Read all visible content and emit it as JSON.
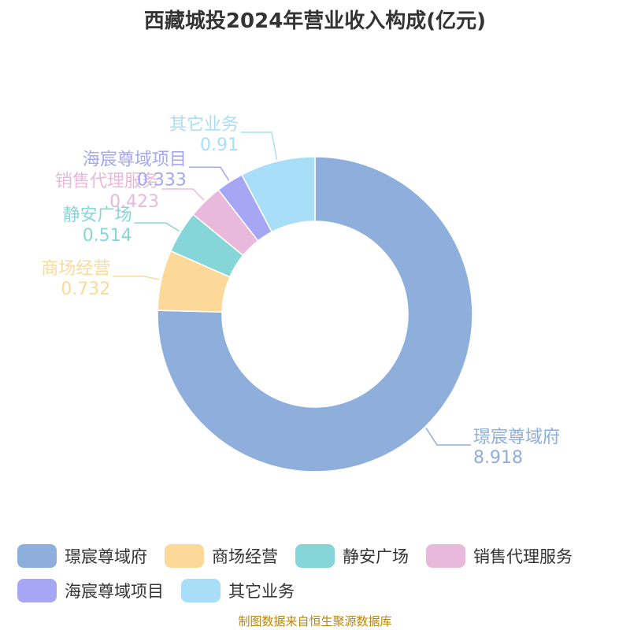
{
  "title": "西藏城投2024年营业收入构成(亿元)",
  "source": "制图数据来自恒生聚源数据库",
  "chart_data": {
    "type": "pie",
    "variant": "donut",
    "title": "西藏城投2024年营业收入构成(亿元)",
    "unit": "亿元",
    "legend_position": "bottom",
    "slices": [
      {
        "name": "璟宸尊域府",
        "value": 8.918,
        "label": "8.918",
        "color": "#8eaedb"
      },
      {
        "name": "商场经营",
        "value": 0.732,
        "label": "0.732",
        "color": "#fdd999"
      },
      {
        "name": "静安广场",
        "value": 0.514,
        "label": "0.514",
        "color": "#86d6d9"
      },
      {
        "name": "销售代理服务",
        "value": 0.423,
        "label": "0.423",
        "color": "#e8b9da"
      },
      {
        "name": "海宸尊域项目",
        "value": 0.333,
        "label": "0.333",
        "color": "#a5a6f4"
      },
      {
        "name": "其它业务",
        "value": 0.91,
        "label": "0.91",
        "color": "#a9def9"
      }
    ]
  }
}
